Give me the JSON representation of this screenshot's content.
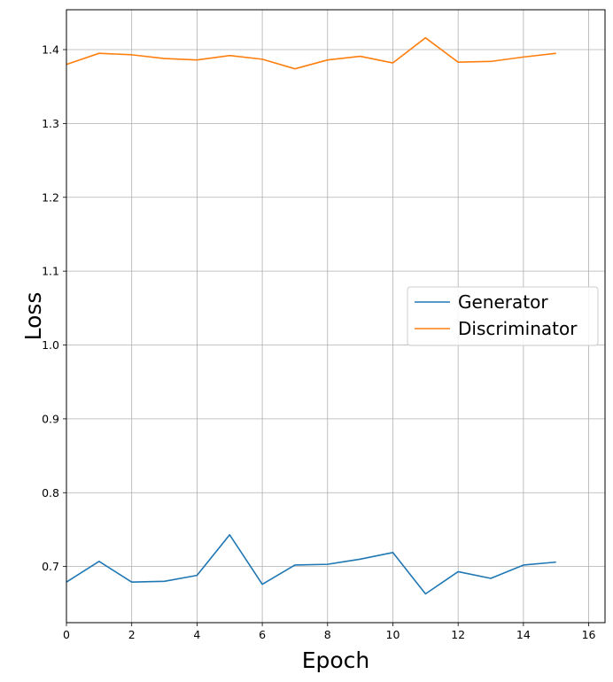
{
  "chart_data": {
    "type": "line",
    "title": "",
    "xlabel": "Epoch",
    "ylabel": "Loss",
    "x": [
      0,
      1,
      2,
      3,
      4,
      5,
      6,
      7,
      8,
      9,
      10,
      11,
      12,
      13,
      14,
      15
    ],
    "series": [
      {
        "name": "Generator",
        "color": "#1f77b4",
        "values": [
          0.679,
          0.707,
          0.679,
          0.68,
          0.688,
          0.743,
          0.676,
          0.702,
          0.703,
          0.71,
          0.719,
          0.663,
          0.693,
          0.684,
          0.702,
          0.706
        ]
      },
      {
        "name": "Discriminator",
        "color": "#ff7f0e",
        "values": [
          1.38,
          1.395,
          1.393,
          1.388,
          1.386,
          1.392,
          1.387,
          1.374,
          1.386,
          1.391,
          1.382,
          1.416,
          1.383,
          1.384,
          1.39,
          1.395
        ]
      }
    ],
    "xlim": [
      0,
      16.5
    ],
    "ylim": [
      0.624,
      1.454
    ],
    "xticks": [
      0,
      2,
      4,
      6,
      8,
      10,
      12,
      14,
      16
    ],
    "yticks": [
      0.7,
      0.8,
      0.9,
      1.0,
      1.1,
      1.2,
      1.3,
      1.4
    ],
    "ytick_labels": [
      "0.7",
      "0.8",
      "0.9",
      "1.0",
      "1.1",
      "1.2",
      "1.3",
      "1.4"
    ],
    "grid": true,
    "legend": "center-right"
  }
}
